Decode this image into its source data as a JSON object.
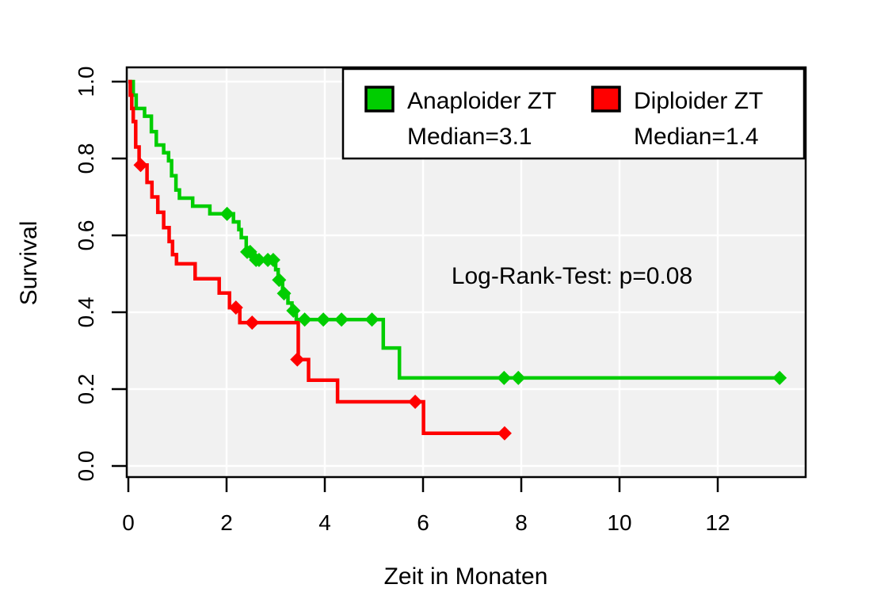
{
  "figure": {
    "background": "#FFFFFF",
    "panel_border_color": "#000000"
  },
  "chart_data": {
    "type": "line",
    "subtype": "kaplan-meier-step-survival",
    "title": "",
    "xlabel": "Zeit in Monaten",
    "ylabel": "Survival",
    "xlim": [
      0,
      13.79
    ],
    "ylim": [
      0,
      1.0
    ],
    "x_ticks": [
      "0",
      "2",
      "4",
      "6",
      "8",
      "10",
      "12"
    ],
    "x_tick_values": [
      0,
      2,
      4,
      6,
      8,
      10,
      12
    ],
    "y_ticks": [
      "0.0",
      "0.2",
      "0.4",
      "0.6",
      "0.8",
      "1.0"
    ],
    "y_tick_values": [
      0,
      0.2,
      0.4,
      0.6,
      0.8,
      1.0
    ],
    "grid": true,
    "panel_background": "#F1F1F1",
    "grid_color": "#FFFFFF",
    "axis_color": "#000000",
    "annotation": {
      "text": "Log-Rank-Test: p=0.08"
    },
    "legend": {
      "position": "top-right",
      "entries": [
        {
          "label": "Anaploider ZT",
          "median_label": "Median=3.1",
          "median": 3.1,
          "color": "#00CD00"
        },
        {
          "label": "Diploider ZT",
          "median_label": "Median=1.4",
          "median": 1.4,
          "color": "#FF0000"
        }
      ]
    },
    "series": [
      {
        "name": "Anaploider ZT",
        "color": "#00CD00",
        "median": 3.1,
        "points": [
          [
            0,
            1.0
          ],
          [
            0.1,
            0.965
          ],
          [
            0.16,
            0.93
          ],
          [
            0.33,
            0.91
          ],
          [
            0.47,
            0.87
          ],
          [
            0.57,
            0.835
          ],
          [
            0.72,
            0.815
          ],
          [
            0.82,
            0.794
          ],
          [
            0.88,
            0.755
          ],
          [
            0.97,
            0.718
          ],
          [
            1.04,
            0.697
          ],
          [
            1.31,
            0.676
          ],
          [
            1.66,
            0.656
          ],
          [
            2.14,
            0.635
          ],
          [
            2.25,
            0.615
          ],
          [
            2.3,
            0.594
          ],
          [
            2.4,
            0.557
          ],
          [
            2.56,
            0.536
          ],
          [
            3.0,
            0.511
          ],
          [
            3.05,
            0.484
          ],
          [
            3.14,
            0.449
          ],
          [
            3.25,
            0.424
          ],
          [
            3.33,
            0.404
          ],
          [
            3.42,
            0.381
          ],
          [
            5.19,
            0.307
          ],
          [
            5.52,
            0.229
          ],
          [
            13.26,
            0.229
          ]
        ],
        "censor_marks": [
          [
            2.01,
            0.656
          ],
          [
            2.42,
            0.557
          ],
          [
            2.48,
            0.557
          ],
          [
            2.6,
            0.536
          ],
          [
            2.66,
            0.536
          ],
          [
            2.84,
            0.536
          ],
          [
            2.95,
            0.536
          ],
          [
            3.07,
            0.484
          ],
          [
            3.17,
            0.449
          ],
          [
            3.36,
            0.404
          ],
          [
            3.59,
            0.381
          ],
          [
            3.97,
            0.381
          ],
          [
            4.34,
            0.381
          ],
          [
            4.96,
            0.381
          ],
          [
            7.65,
            0.229
          ],
          [
            7.94,
            0.229
          ],
          [
            13.26,
            0.229
          ]
        ]
      },
      {
        "name": "Diploider ZT",
        "color": "#FF0000",
        "median": 1.4,
        "points": [
          [
            0,
            1.0
          ],
          [
            0.04,
            0.965
          ],
          [
            0.07,
            0.93
          ],
          [
            0.1,
            0.896
          ],
          [
            0.15,
            0.83
          ],
          [
            0.22,
            0.783
          ],
          [
            0.38,
            0.738
          ],
          [
            0.48,
            0.7
          ],
          [
            0.6,
            0.66
          ],
          [
            0.72,
            0.62
          ],
          [
            0.83,
            0.584
          ],
          [
            0.9,
            0.55
          ],
          [
            0.98,
            0.526
          ],
          [
            1.36,
            0.487
          ],
          [
            1.85,
            0.45
          ],
          [
            2.06,
            0.412
          ],
          [
            2.27,
            0.373
          ],
          [
            3.46,
            0.277
          ],
          [
            3.67,
            0.223
          ],
          [
            4.26,
            0.167
          ],
          [
            6.01,
            0.085
          ],
          [
            7.66,
            0.085
          ]
        ],
        "censor_marks": [
          [
            0.25,
            0.783
          ],
          [
            2.19,
            0.412
          ],
          [
            2.52,
            0.373
          ],
          [
            3.44,
            0.277
          ],
          [
            5.84,
            0.167
          ],
          [
            7.66,
            0.085
          ]
        ]
      }
    ]
  }
}
